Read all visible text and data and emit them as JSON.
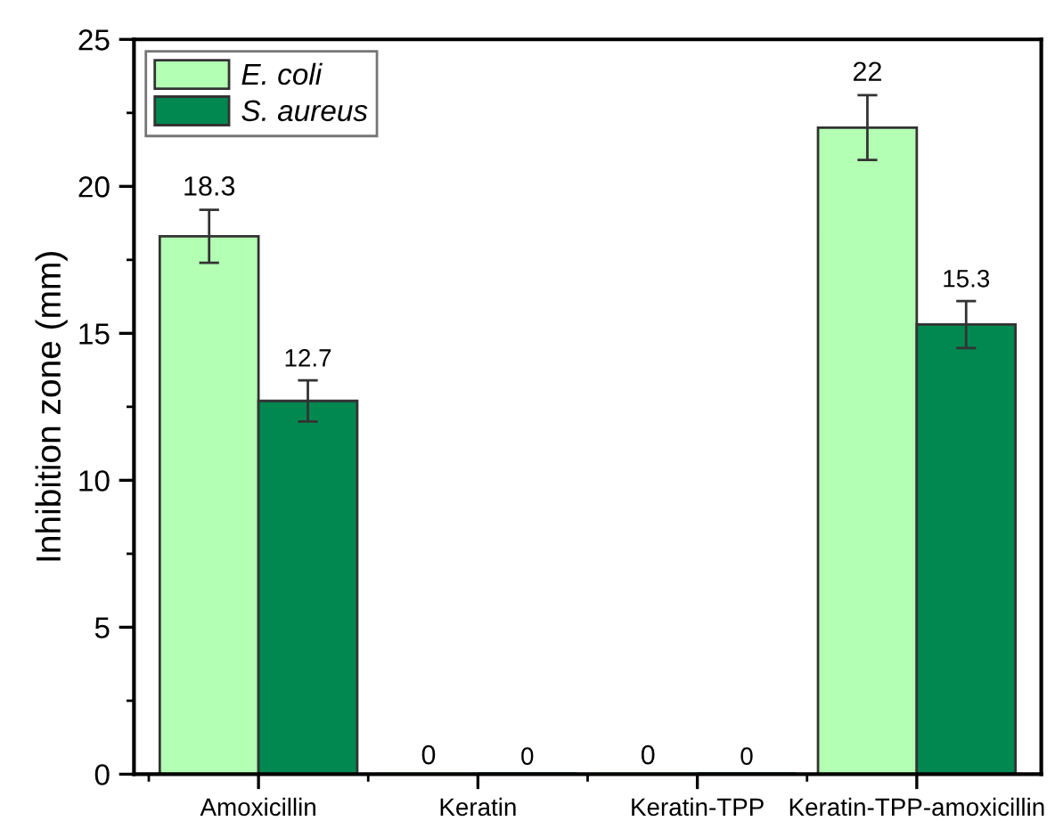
{
  "chart_data": {
    "type": "bar",
    "ylabel": "Inhibition zone (mm)",
    "categories": [
      "Amoxicillin",
      "Keratin",
      "Keratin-TPP",
      "Keratin-TPP-amoxicillin"
    ],
    "series": [
      {
        "name": "E. coli",
        "color": "#b3ffb3",
        "values": [
          18.3,
          0,
          0,
          22
        ],
        "errors": [
          0.9,
          null,
          null,
          1.1
        ]
      },
      {
        "name": "S. aureus",
        "color": "#008850",
        "values": [
          12.7,
          0,
          0,
          15.3
        ],
        "errors": [
          0.7,
          null,
          null,
          0.8
        ]
      }
    ],
    "ylim": [
      0,
      25
    ],
    "yticks": [
      0,
      5,
      10,
      15,
      20,
      25
    ],
    "data_labels": true,
    "legend": "top left",
    "grid": false
  }
}
